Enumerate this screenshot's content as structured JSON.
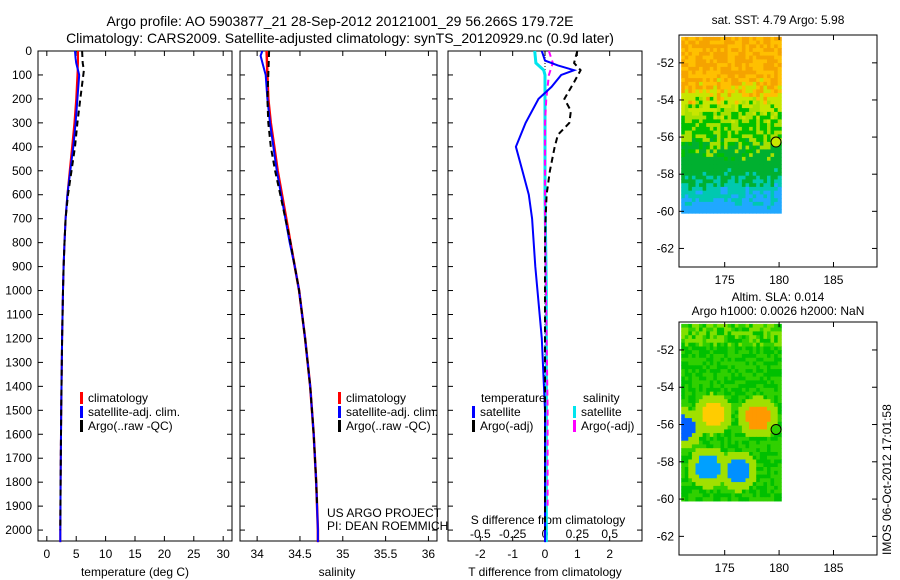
{
  "title_line1": "Argo profile: AO 5903877_21 28-Sep-2012 20121001_29 56.266S 179.72E",
  "title_line2": "Climatology: CARS2009. Satellite-adjusted climatology: synTS_20120929.nc (0.9d later)",
  "footer_stamp": "IMOS 06-Oct-2012 17:01:58",
  "colors": {
    "climatology": "#ff0000",
    "satellite": "#0000ff",
    "argo": "#000000",
    "sal_satellite": "#00e5ee",
    "sal_argo": "#ff00ff"
  },
  "chart_data": [
    {
      "type": "line",
      "ylabel": "",
      "ylim": [
        2050,
        0
      ],
      "yticks": [
        0,
        100,
        200,
        300,
        400,
        500,
        600,
        700,
        800,
        900,
        1000,
        1100,
        1200,
        1300,
        1400,
        1500,
        1600,
        1700,
        1800,
        1900,
        2000
      ],
      "xlabel": "temperature (deg C)",
      "xlim": [
        -1.5,
        31.5
      ],
      "xticks": [
        0,
        5,
        10,
        15,
        20,
        25,
        30
      ],
      "legend": [
        "climatology",
        "satellite-adj. clim.",
        "Argo(..raw -QC)"
      ],
      "series": [
        {
          "name": "climatology",
          "depth": [
            0,
            50,
            100,
            200,
            300,
            400,
            500,
            600,
            700,
            800,
            900,
            1000,
            1200,
            1500,
            1800,
            2000,
            2050
          ],
          "values": [
            5.3,
            5.3,
            5.2,
            5.0,
            4.7,
            4.3,
            3.9,
            3.5,
            3.2,
            3.0,
            2.85,
            2.75,
            2.6,
            2.45,
            2.35,
            2.3,
            2.3
          ]
        },
        {
          "name": "satellite-adj. clim.",
          "depth": [
            0,
            30,
            50,
            100,
            200,
            300,
            400,
            500,
            600,
            700,
            800,
            900,
            1000,
            1200,
            1500,
            1800,
            2000,
            2050
          ],
          "values": [
            4.8,
            4.9,
            5.0,
            5.5,
            5.2,
            4.9,
            4.5,
            4.0,
            3.5,
            3.2,
            3.0,
            2.85,
            2.75,
            2.6,
            2.45,
            2.35,
            2.3,
            2.3
          ]
        },
        {
          "name": "Argo(..raw -QC)",
          "depth": [
            0,
            50,
            80,
            100,
            200,
            300,
            400,
            500,
            600,
            700,
            800,
            900,
            1000,
            1200,
            1500,
            1800,
            2000
          ],
          "values": [
            6.0,
            6.1,
            6.3,
            6.2,
            5.7,
            5.2,
            4.8,
            4.2,
            3.6,
            3.2,
            3.0,
            2.85,
            2.75,
            2.6,
            2.45,
            2.35,
            2.3
          ]
        }
      ]
    },
    {
      "type": "line",
      "xlabel": "salinity",
      "xlim": [
        33.8,
        36.1
      ],
      "xticks": [
        34,
        34.5,
        35,
        35.5,
        36
      ],
      "xticklabels": [
        "34",
        "34.5",
        "35",
        "35.5",
        "36"
      ],
      "legend": [
        "climatology",
        "satellite-adj. clim.",
        "Argo(..raw -QC)"
      ],
      "annotation": [
        "US ARGO PROJECT",
        "PI: DEAN ROEMMICH"
      ],
      "series": [
        {
          "name": "climatology",
          "depth": [
            0,
            100,
            200,
            300,
            400,
            500,
            600,
            700,
            800,
            900,
            1000,
            1200,
            1400,
            1600,
            1800,
            2000,
            2050
          ],
          "values": [
            34.11,
            34.12,
            34.13,
            34.16,
            34.2,
            34.24,
            34.29,
            34.34,
            34.39,
            34.44,
            34.49,
            34.56,
            34.62,
            34.66,
            34.69,
            34.71,
            34.71
          ]
        },
        {
          "name": "satellite-adj. clim.",
          "depth": [
            0,
            20,
            60,
            100,
            200,
            300,
            400,
            500,
            600,
            700,
            800,
            900,
            1000,
            1200,
            1400,
            1600,
            1800,
            2000,
            2050
          ],
          "values": [
            34.06,
            34.04,
            34.07,
            34.1,
            34.12,
            34.15,
            34.19,
            34.23,
            34.28,
            34.33,
            34.38,
            34.44,
            34.49,
            34.56,
            34.62,
            34.66,
            34.69,
            34.71,
            34.71
          ]
        },
        {
          "name": "Argo(..raw -QC)",
          "depth": [
            0,
            100,
            200,
            300,
            400,
            500,
            600,
            700,
            800,
            900,
            1000,
            1200,
            1400,
            1600,
            1800,
            1900
          ],
          "values": [
            34.14,
            34.13,
            34.12,
            34.13,
            34.16,
            34.21,
            34.27,
            34.33,
            34.39,
            34.44,
            34.49,
            34.56,
            34.62,
            34.66,
            34.69,
            34.7
          ]
        }
      ]
    },
    {
      "type": "line",
      "xlabel": "T difference from climatology",
      "xlim": [
        -3,
        3
      ],
      "xticks": [
        -2,
        -1,
        0,
        1,
        2
      ],
      "x2label": "S difference from climatology",
      "x2ticks": [
        -0.5,
        -0.25,
        0,
        0.25,
        0.5
      ],
      "x2ticklabels": [
        "-0.5",
        "-0.25",
        "0",
        "0.25",
        "0.5"
      ],
      "legend_left_title": "temperature",
      "legend_right_title": "salinity",
      "legend": [
        "satellite",
        "Argo(-adj)",
        "satellite",
        "Argo(-adj)"
      ],
      "series": [
        {
          "name": "T satellite",
          "units": "degC",
          "depth": [
            0,
            40,
            60,
            80,
            100,
            150,
            200,
            300,
            400,
            500,
            600,
            700,
            900,
            1200,
            1500,
            2000,
            2050
          ],
          "values": [
            -0.1,
            0.0,
            0.4,
            0.9,
            0.5,
            0.2,
            -0.2,
            -0.6,
            -0.9,
            -0.7,
            -0.5,
            -0.4,
            -0.3,
            -0.1,
            0.0,
            0.0,
            0.0
          ]
        },
        {
          "name": "T Argo(-adj)",
          "units": "degC",
          "depth": [
            0,
            50,
            80,
            130,
            200,
            250,
            300,
            350,
            400,
            500,
            600,
            700,
            800,
            1200,
            2000
          ],
          "values": [
            1.0,
            0.9,
            1.1,
            0.9,
            0.6,
            0.8,
            0.75,
            0.4,
            0.3,
            0.15,
            0.05,
            0.02,
            0.0,
            0.0,
            0.0
          ]
        },
        {
          "name": "S satellite",
          "units": "psu",
          "depth": [
            0,
            50,
            80,
            100,
            200,
            300,
            600,
            1000,
            1500,
            2000,
            2050
          ],
          "values": [
            -0.08,
            -0.07,
            -0.01,
            0.0,
            0.0,
            0.0,
            0.0,
            0.01,
            0.01,
            0.01,
            0.01
          ]
        },
        {
          "name": "S Argo(-adj)",
          "units": "psu",
          "depth": [
            0,
            50,
            100,
            200,
            300,
            500,
            700,
            1500,
            1900
          ],
          "values": [
            0.03,
            0.06,
            0.03,
            0.01,
            0.0,
            0.0,
            0.0,
            0.02,
            0.02
          ]
        }
      ]
    },
    {
      "type": "heatmap",
      "title": "sat. SST: 4.79 Argo: 5.98",
      "xticks": [
        175,
        180,
        185
      ],
      "yticks": [
        -52,
        -54,
        -56,
        -58,
        -60,
        -62
      ],
      "xlim": [
        170.8,
        189
      ],
      "ylim": [
        -63,
        -50.5
      ],
      "data_extent": {
        "lon": [
          171,
          180.2
        ],
        "lat": [
          -60.1,
          -50.6
        ]
      },
      "argo_position": {
        "lon": 179.72,
        "lat": -56.266
      }
    },
    {
      "type": "heatmap",
      "title_line1": "Altim. SLA: 0.014",
      "title_line2": "Argo h1000: 0.0026 h2000: NaN",
      "xticks": [
        175,
        180,
        185
      ],
      "yticks": [
        -52,
        -54,
        -56,
        -58,
        -60,
        -62
      ],
      "xlim": [
        170.8,
        189
      ],
      "ylim": [
        -63,
        -50.5
      ],
      "data_extent": {
        "lon": [
          171,
          180.2
        ],
        "lat": [
          -60.1,
          -50.6
        ]
      },
      "argo_position": {
        "lon": 179.72,
        "lat": -56.266
      }
    }
  ]
}
